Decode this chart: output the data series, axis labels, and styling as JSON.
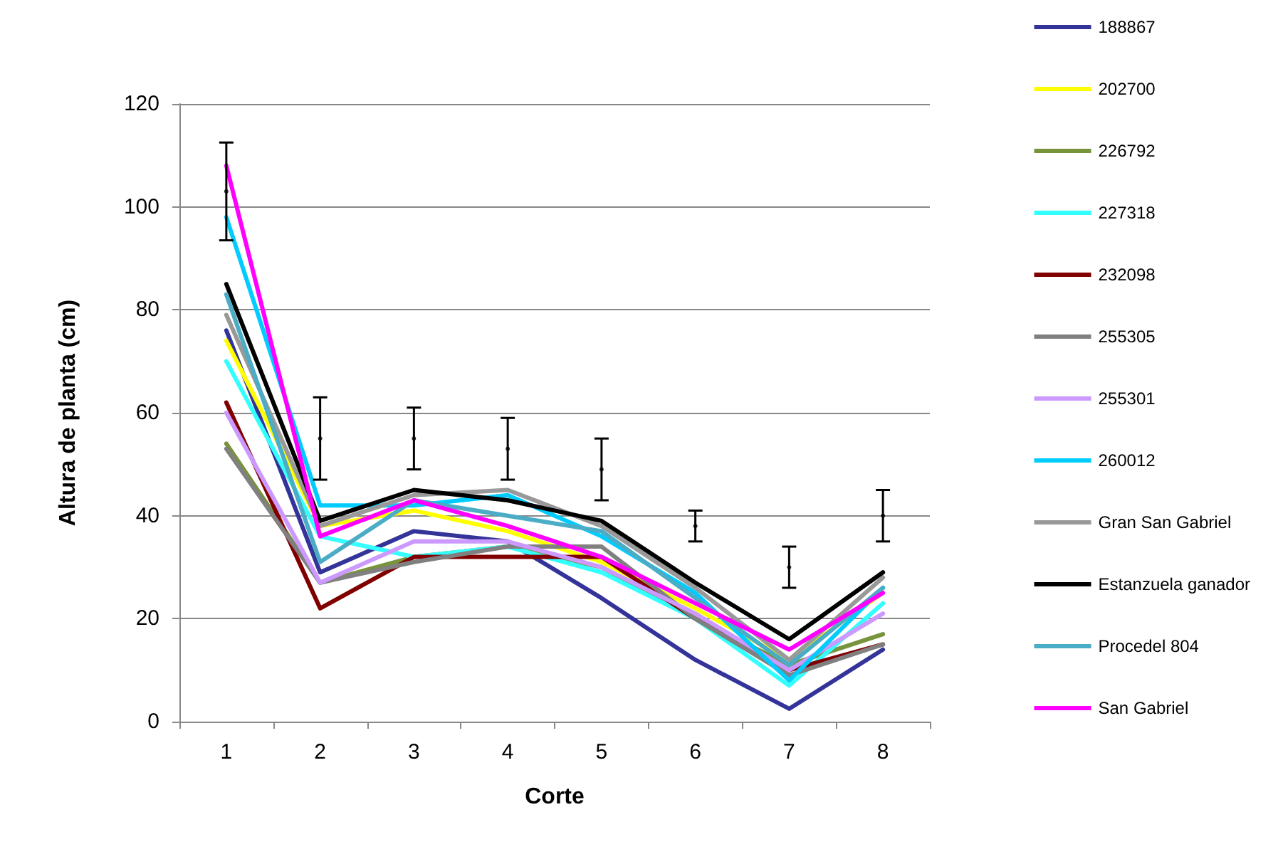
{
  "chart_data": {
    "type": "line",
    "xlabel": "Corte",
    "ylabel": "Altura de planta (cm)",
    "categories": [
      "1",
      "2",
      "3",
      "4",
      "5",
      "6",
      "7",
      "8"
    ],
    "ylim": [
      0,
      120
    ],
    "yticks": [
      0,
      20,
      40,
      60,
      80,
      100,
      120
    ],
    "grid": "y",
    "legend": "right",
    "marker": "none",
    "line_style": "solid",
    "series": [
      {
        "name": "188867",
        "color": "#333399",
        "values": [
          76,
          29,
          37,
          35,
          24,
          12,
          2.5,
          14
        ]
      },
      {
        "name": "202700",
        "color": "#ffff00",
        "values": [
          74,
          38,
          41,
          37,
          31,
          22,
          12,
          25
        ]
      },
      {
        "name": "226792",
        "color": "#77933c",
        "values": [
          54,
          27,
          32,
          34,
          30,
          20,
          11,
          17
        ]
      },
      {
        "name": "227318",
        "color": "#33ffff",
        "values": [
          70,
          36,
          32,
          34,
          29,
          20,
          7,
          23
        ]
      },
      {
        "name": "232098",
        "color": "#800000",
        "values": [
          62,
          22,
          32,
          32,
          32,
          20,
          10,
          15
        ]
      },
      {
        "name": "255305",
        "color": "#808080",
        "values": [
          53,
          27,
          31,
          34,
          34,
          20,
          9,
          15
        ]
      },
      {
        "name": "255301",
        "color": "#cc99ff",
        "values": [
          60,
          27,
          35,
          35,
          30,
          21,
          10,
          21
        ]
      },
      {
        "name": "260012",
        "color": "#00ccff",
        "values": [
          98,
          42,
          42,
          44,
          36,
          25,
          8,
          26
        ]
      },
      {
        "name": "Gran San Gabriel",
        "color": "#999999",
        "values": [
          79,
          38,
          44,
          45,
          38,
          26,
          12,
          28
        ]
      },
      {
        "name": "Estanzuela ganador",
        "color": "#000000",
        "values": [
          85,
          39,
          45,
          43,
          39,
          27,
          16,
          29
        ]
      },
      {
        "name": "Procedel 804",
        "color": "#4bacc6",
        "values": [
          83,
          31,
          43,
          40,
          37,
          24,
          11,
          26
        ]
      },
      {
        "name": "San Gabriel",
        "color": "#ff00ff",
        "values": [
          108,
          36,
          43,
          38,
          32,
          23,
          14,
          25
        ]
      },
      {
        "type": "scatter",
        "marker": "circle",
        "color": "#000000",
        "values": [
          103,
          55,
          55,
          53,
          49,
          38,
          30,
          40
        ],
        "errors": [
          9.5,
          8,
          6,
          6,
          6,
          3,
          4,
          5
        ]
      }
    ]
  }
}
